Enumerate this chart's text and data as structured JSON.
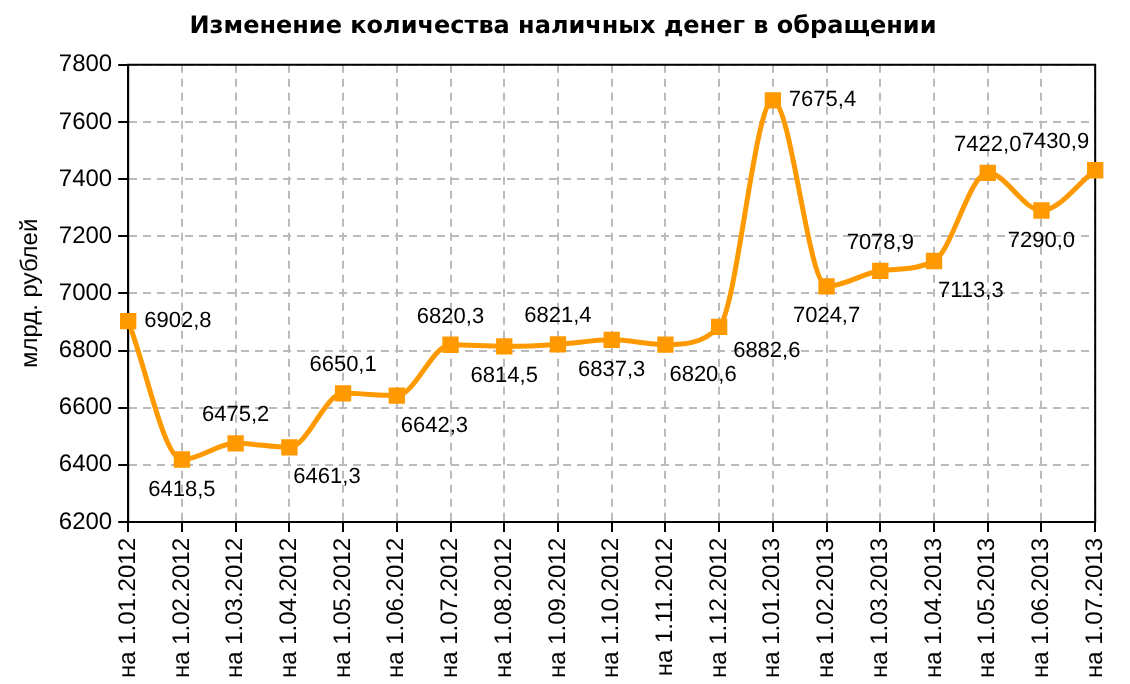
{
  "chart_data": {
    "type": "line",
    "title": "Изменение количества наличных денег в обращении",
    "ylabel": "млрд. рублей",
    "categories": [
      "на 1.01.2012",
      "на 1.02.2012",
      "на 1.03.2012",
      "на 1.04.2012",
      "на 1.05.2012",
      "на 1.06.2012",
      "на 1.07.2012",
      "на 1.08.2012",
      "на 1.09.2012",
      "на 1.10.2012",
      "на 1.11.2012",
      "на 1.12.2012",
      "на 1.01.2013",
      "на 1.02.2013",
      "на 1.03.2013",
      "на 1.04.2013",
      "на 1.05.2013",
      "на 1.06.2013",
      "на 1.07.2013"
    ],
    "series": [
      {
        "color": "#ff9900",
        "values": [
          6902.8,
          6418.5,
          6475.2,
          6461.3,
          6650.1,
          6642.3,
          6820.3,
          6814.5,
          6821.4,
          6837.3,
          6820.6,
          6882.6,
          7675.4,
          7024.7,
          7078.9,
          7113.3,
          7422.0,
          7290.0,
          7430.9
        ],
        "value_labels": [
          "6902,8",
          "6418,5",
          "6475,2",
          "6461,3",
          "6650,1",
          "6642,3",
          "6820,3",
          "6814,5",
          "6821,4",
          "6837,3",
          "6820,6",
          "6882,6",
          "7675,4",
          "7024,7",
          "7078,9",
          "7113,3",
          "7422,0",
          "7290,0",
          "7430,9"
        ]
      }
    ],
    "ylim": [
      6200,
      7800
    ],
    "yticks": [
      6200,
      6400,
      6600,
      6800,
      7000,
      7200,
      7400,
      7600,
      7800
    ],
    "grid": true,
    "legend": false,
    "marker": "square",
    "line_style": "solid"
  }
}
